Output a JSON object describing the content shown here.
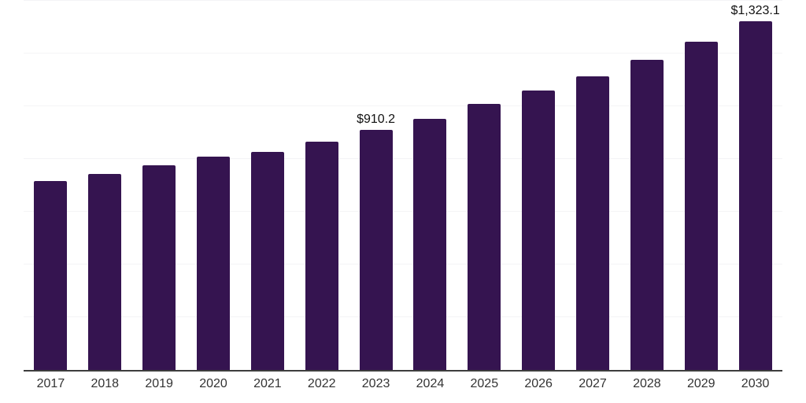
{
  "chart": {
    "background_color": "#ffffff",
    "bar_color": "#351450",
    "gridline_color": "#f4f4f6",
    "axis_line_color": "#3d3d3d",
    "tick_label_color": "#333333",
    "data_label_color": "#111111"
  },
  "chart_data": {
    "type": "bar",
    "title": "",
    "xlabel": "",
    "ylabel": "",
    "categories": [
      "2017",
      "2018",
      "2019",
      "2020",
      "2021",
      "2022",
      "2023",
      "2024",
      "2025",
      "2026",
      "2027",
      "2028",
      "2029",
      "2030"
    ],
    "values": [
      716,
      744,
      775,
      808,
      826,
      865,
      910.2,
      953,
      1007,
      1058,
      1112,
      1176,
      1244,
      1323.1
    ],
    "data_labels": [
      null,
      null,
      null,
      null,
      null,
      null,
      "$910.2",
      null,
      null,
      null,
      null,
      null,
      null,
      "$1,323.1"
    ],
    "ylim": [
      0,
      1402
    ],
    "gridline_step": 200,
    "grid": true,
    "legend": false,
    "y_axis_tick_labels_visible": false
  }
}
